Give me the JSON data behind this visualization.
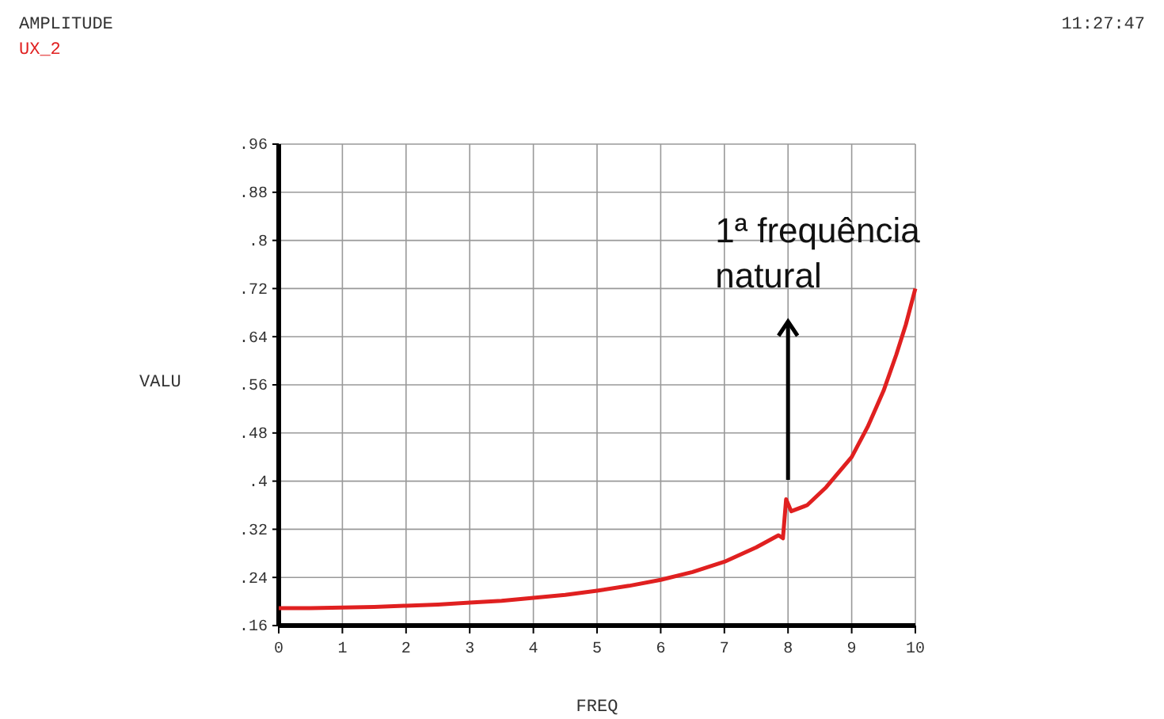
{
  "chart_data": {
    "type": "line",
    "title": "AMPLITUDE",
    "xlabel": "FREQ",
    "ylabel": "VALU",
    "xlim": [
      0,
      10
    ],
    "xticks": [
      0,
      1,
      2,
      3,
      4,
      5,
      6,
      7,
      8,
      9,
      10
    ],
    "ylim": [
      0.16,
      0.96
    ],
    "yticks": [
      {
        "value": 0.16,
        "label": ".16"
      },
      {
        "value": 0.24,
        "label": ".24"
      },
      {
        "value": 0.32,
        "label": ".32"
      },
      {
        "value": 0.4,
        "label": ".4"
      },
      {
        "value": 0.48,
        "label": ".48"
      },
      {
        "value": 0.56,
        "label": ".56"
      },
      {
        "value": 0.64,
        "label": ".64"
      },
      {
        "value": 0.72,
        "label": ".72"
      },
      {
        "value": 0.8,
        "label": ".8"
      },
      {
        "value": 0.88,
        "label": ".88"
      },
      {
        "value": 0.96,
        "label": ".96"
      }
    ],
    "grid": true,
    "legend": "top left",
    "series": [
      {
        "name": "UX_2",
        "color": "#e02020",
        "x": [
          0,
          0.5,
          1,
          1.5,
          2,
          2.5,
          3,
          3.5,
          4,
          4.5,
          5,
          5.5,
          6,
          6.5,
          7,
          7.5,
          7.85,
          7.92,
          7.97,
          8.05,
          8.3,
          8.6,
          9,
          9.25,
          9.5,
          9.7,
          9.85,
          10
        ],
        "values": [
          0.189,
          0.189,
          0.19,
          0.191,
          0.193,
          0.195,
          0.198,
          0.201,
          0.206,
          0.211,
          0.218,
          0.226,
          0.236,
          0.249,
          0.266,
          0.29,
          0.31,
          0.305,
          0.37,
          0.35,
          0.36,
          0.39,
          0.44,
          0.49,
          0.55,
          0.61,
          0.66,
          0.72
        ]
      }
    ],
    "annotations": [
      "1ª frequência natural",
      "11:27:47"
    ]
  }
}
